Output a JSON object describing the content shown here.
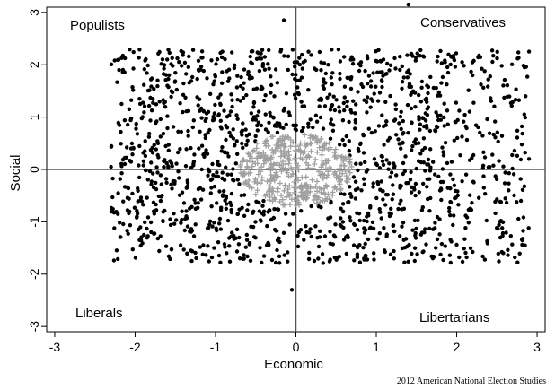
{
  "chart_data": {
    "type": "scatter",
    "title": "",
    "xlabel": "Economic",
    "ylabel": "Social",
    "xlim": [
      -3.1,
      3.1
    ],
    "ylim": [
      -3.1,
      3.1
    ],
    "xticks": [
      -3,
      -2,
      -1,
      0,
      1,
      2,
      3
    ],
    "yticks": [
      -3,
      -2,
      -1,
      0,
      1,
      2,
      3
    ],
    "grid": false,
    "reference_lines": {
      "x": 0,
      "y": 0
    },
    "quadrant_labels": {
      "top_left": "Populists",
      "top_right": "Conservatives",
      "bottom_left": "Liberals",
      "bottom_right": "Libertarians"
    },
    "source": "2012 American National Election Studies",
    "colors": {
      "outer_points": "#000000",
      "center_points": "#a0a0a0"
    },
    "series": [
      {
        "marker": "dot",
        "color": "#000000",
        "distribution": "uniform scatter over x -2.3 to 2.9 and y -1.8 to 2.3, excluding the central circle of radius 0.7; about 1500 respondents",
        "highlighted_points": [
          [
            1.4,
            3.15
          ],
          [
            -0.15,
            2.85
          ],
          [
            2.9,
            2.25
          ],
          [
            -0.05,
            -2.3
          ],
          [
            2.85,
            -1.45
          ],
          [
            -2.3,
            0.05
          ],
          [
            2.9,
            0.2
          ],
          [
            -2.2,
            1.9
          ]
        ]
      },
      {
        "marker": "plus",
        "color": "#a0a0a0",
        "distribution": "dense cluster inside a circle of radius 0.7 centered at the origin; about 400 respondents"
      }
    ]
  }
}
